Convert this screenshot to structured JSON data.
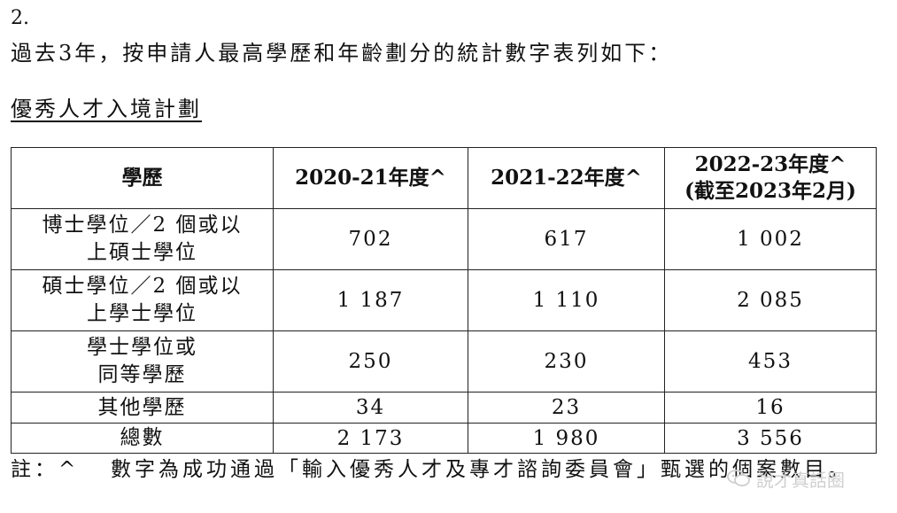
{
  "section_number": "2.",
  "intro": "過去3年，按申請人最高學歷和年齡劃分的統計數字表列如下：",
  "scheme_title": "優秀人才入境計劃",
  "table": {
    "headers": [
      "學歷",
      "2020-21年度^",
      "2021-22年度^",
      "2022-23年度^",
      "(截至2023年2月)"
    ],
    "rows": [
      {
        "label_1": "博士學位／2 個或以",
        "label_2": "上碩士學位",
        "values": [
          "702",
          "617",
          "1 002"
        ]
      },
      {
        "label_1": "碩士學位／2 個或以",
        "label_2": "上學士學位",
        "values": [
          "1 187",
          "1 110",
          "2 085"
        ]
      },
      {
        "label_1": "學士學位或",
        "label_2": "同等學歷",
        "values": [
          "250",
          "230",
          "453"
        ]
      },
      {
        "label_1": "其他學歷",
        "label_2": "",
        "values": [
          "34",
          "23",
          "16"
        ]
      },
      {
        "label_1": "總數",
        "label_2": "",
        "values": [
          "2 173",
          "1 980",
          "3 556"
        ]
      }
    ]
  },
  "footnote": {
    "mark": "註：^",
    "text": "數字為成功通過「輸入優秀人才及專才諮詢委員會」甄選的個案數目。"
  },
  "watermark": {
    "icon": "chat-bubbles-icon",
    "text": "說才真話圈"
  }
}
